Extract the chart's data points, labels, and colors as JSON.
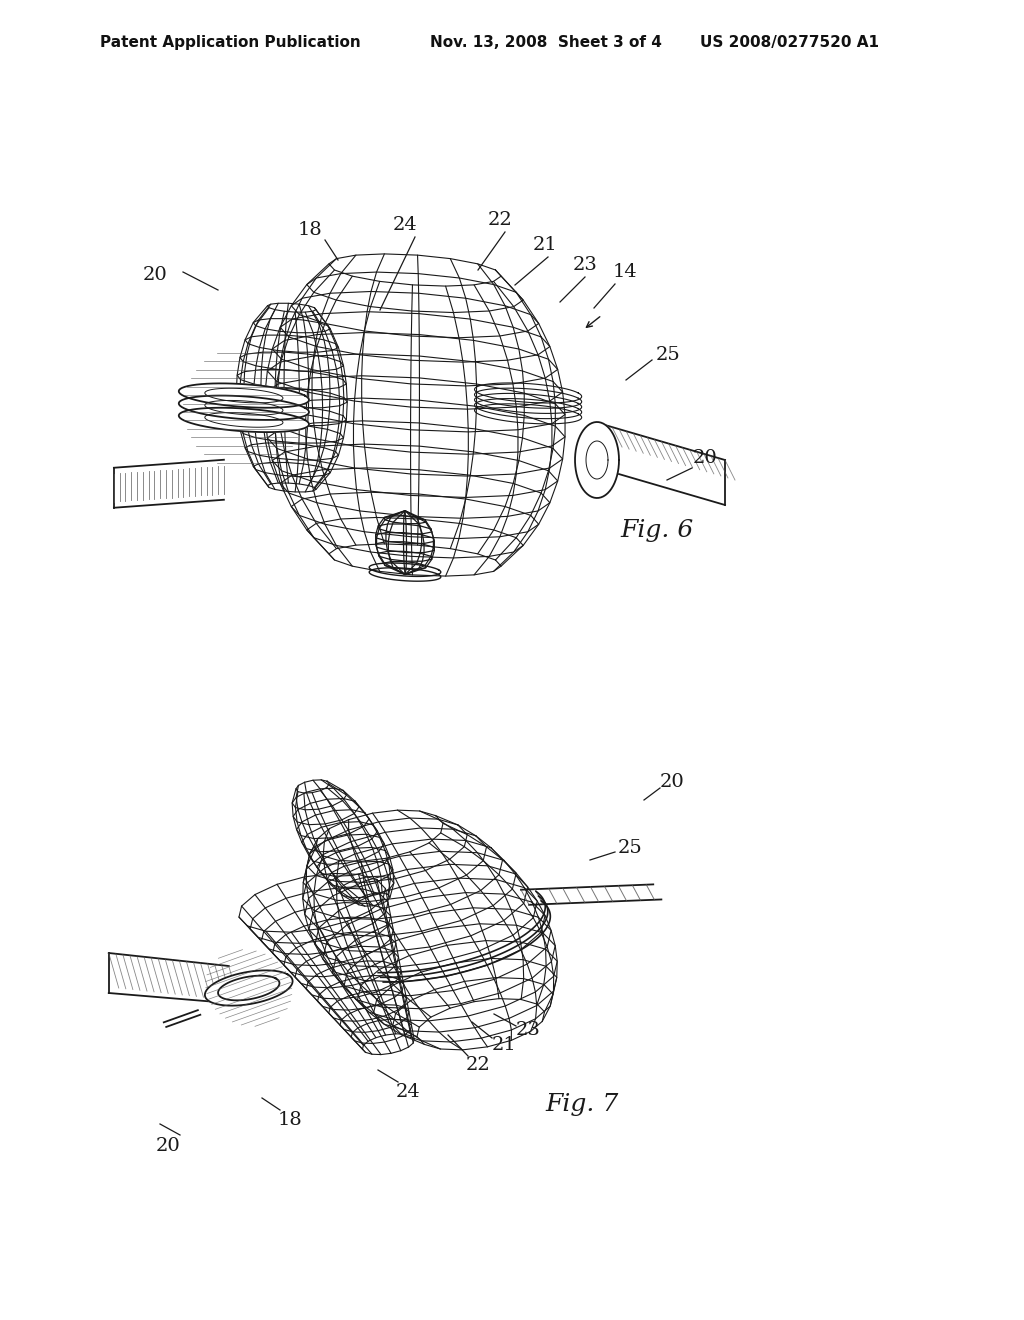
{
  "background_color": "#ffffff",
  "header_left": "Patent Application Publication",
  "header_center": "Nov. 13, 2008  Sheet 3 of 4",
  "header_right": "US 2008/0277520 A1",
  "line_color": "#1a1a1a",
  "annotation_fontsize": 14,
  "fig6_label": "Fig. 6",
  "fig7_label": "Fig. 7"
}
